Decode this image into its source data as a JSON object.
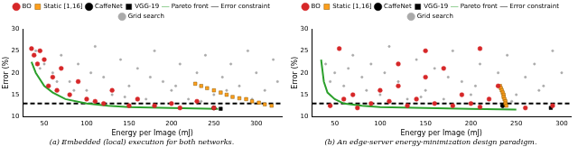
{
  "chart_data": [
    {
      "type": "scatter",
      "title": "(a) Embedded (local) execution for both networks.",
      "x_label": "Energy per Image (mJ)",
      "y_label": "Error (%)",
      "xlim": [
        25,
        330
      ],
      "xticks": [
        50,
        100,
        150,
        200,
        250,
        300
      ],
      "ylim": [
        10,
        30
      ],
      "yticks": [
        10,
        15,
        20,
        25,
        30
      ],
      "grid": false,
      "legend": "top",
      "series": [
        {
          "name": "Pareto front",
          "type": "line",
          "line_style": "solid",
          "color": "#2ca02c",
          "x": [
            35,
            40,
            50,
            60,
            75,
            100,
            125,
            150,
            200,
            255
          ],
          "values": [
            22.5,
            20,
            17,
            15.5,
            14,
            13,
            12.5,
            12.2,
            12,
            11.8
          ]
        },
        {
          "name": "Error constraint",
          "type": "line",
          "line_style": "dashed",
          "color": "#000000",
          "x": [
            25,
            330
          ],
          "values": [
            13,
            13
          ]
        },
        {
          "name": "BO",
          "type": "scatter",
          "marker": "circle",
          "color": "#d62728",
          "x": [
            35,
            38,
            42,
            45,
            50,
            55,
            60,
            65,
            70,
            80,
            90,
            100,
            110,
            120,
            130,
            150,
            160,
            180,
            200,
            210,
            230,
            250
          ],
          "values": [
            25.5,
            24,
            22,
            25,
            23,
            17,
            19,
            16,
            21,
            15,
            18,
            14,
            13.5,
            13,
            16,
            12.5,
            14,
            12.5,
            13,
            12,
            13.5,
            12
          ]
        },
        {
          "name": "Static [1,16]",
          "type": "scatter",
          "marker": "square",
          "color": "#ff9f1c",
          "x": [
            228,
            235,
            242,
            250,
            258,
            265,
            272,
            280,
            288,
            295,
            303,
            310,
            318
          ],
          "values": [
            17.5,
            17,
            16.5,
            16,
            15.5,
            15,
            14.5,
            14.2,
            14,
            13.5,
            13.2,
            12.8,
            12.5
          ]
        },
        {
          "name": "CaffeNet",
          "type": "scatter",
          "marker": "circle",
          "color": "#000000",
          "x": [
            250
          ],
          "values": [
            12
          ]
        },
        {
          "name": "VGG-19",
          "type": "scatter",
          "marker": "square",
          "color": "#000000",
          "x": [
            258
          ],
          "values": [
            11.8
          ]
        },
        {
          "name": "Grid search",
          "type": "scatter",
          "marker": "dot",
          "color": "#aaaaaa",
          "x": [
            40,
            50,
            60,
            70,
            80,
            90,
            100,
            110,
            120,
            130,
            140,
            150,
            160,
            170,
            180,
            190,
            200,
            210,
            220,
            230,
            240,
            250,
            260,
            270,
            280,
            290,
            300,
            310,
            320,
            325,
            45,
            65,
            85,
            105,
            145,
            175,
            205,
            235,
            265,
            295
          ],
          "values": [
            25,
            22,
            20,
            24,
            18,
            22,
            16,
            26,
            19,
            15,
            23,
            17,
            21,
            14,
            25,
            18,
            16,
            22,
            14,
            20,
            24,
            15,
            19,
            22,
            17,
            25,
            20,
            16,
            23,
            18,
            21,
            18,
            16,
            20,
            14.5,
            19,
            17,
            13.5,
            16,
            14
          ]
        }
      ]
    },
    {
      "type": "scatter",
      "title": "(b) An edge-server energy-minimization design paradigm.",
      "x_label": "Energy per Image (mJ)",
      "y_label": "Error (%)",
      "xlim": [
        25,
        310
      ],
      "xticks": [
        50,
        100,
        150,
        200,
        250,
        300
      ],
      "ylim": [
        10,
        30
      ],
      "yticks": [
        10,
        15,
        20,
        25,
        30
      ],
      "grid": false,
      "legend": "top",
      "series": [
        {
          "name": "Pareto front",
          "type": "line",
          "line_style": "solid",
          "color": "#2ca02c",
          "x": [
            35,
            38,
            42,
            50,
            60,
            80,
            100,
            150,
            200,
            250
          ],
          "values": [
            23,
            18,
            15.5,
            14,
            13,
            12.5,
            12.2,
            12,
            11.8,
            11.6
          ]
        },
        {
          "name": "Error constraint",
          "type": "line",
          "line_style": "dashed",
          "color": "#000000",
          "x": [
            25,
            310
          ],
          "values": [
            13,
            13
          ]
        },
        {
          "name": "BO",
          "type": "scatter",
          "marker": "circle",
          "color": "#d62728",
          "x": [
            45,
            60,
            70,
            75,
            90,
            100,
            110,
            120,
            130,
            140,
            150,
            160,
            170,
            180,
            190,
            200,
            210,
            220,
            230,
            260,
            290,
            55,
            150,
            210,
            120
          ],
          "values": [
            12.5,
            14,
            15,
            12,
            13,
            16,
            13.5,
            17,
            12.5,
            14,
            19,
            13,
            21,
            12.5,
            15,
            13,
            12.2,
            14,
            17,
            12,
            12.5,
            25.5,
            25,
            25.5,
            22
          ]
        },
        {
          "name": "Static [1,16]",
          "type": "scatter",
          "marker": "square",
          "color": "#ff9f1c",
          "x": [
            232,
            233,
            234,
            235,
            236,
            236,
            237,
            238,
            238,
            239
          ],
          "values": [
            17,
            16.5,
            16,
            15.5,
            15,
            14.5,
            14,
            13.5,
            13,
            12.5
          ]
        },
        {
          "name": "CaffeNet",
          "type": "scatter",
          "marker": "circle",
          "color": "#000000",
          "x": [
            235
          ],
          "values": [
            12.5
          ]
        },
        {
          "name": "VGG-19",
          "type": "scatter",
          "marker": "square",
          "color": "#000000",
          "x": [
            288
          ],
          "values": [
            12
          ]
        },
        {
          "name": "Grid search",
          "type": "scatter",
          "marker": "dot",
          "color": "#aaaaaa",
          "x": [
            40,
            50,
            60,
            70,
            80,
            90,
            100,
            110,
            120,
            130,
            140,
            150,
            160,
            170,
            180,
            190,
            200,
            210,
            220,
            230,
            240,
            250,
            260,
            270,
            280,
            290,
            300,
            45,
            65,
            85,
            105,
            145,
            175,
            205,
            245,
            275
          ],
          "values": [
            22,
            20,
            17,
            24,
            19,
            22,
            15,
            26,
            18,
            14,
            23,
            16,
            21,
            14,
            25,
            18,
            15,
            22,
            14,
            20,
            24,
            15,
            19,
            22,
            17,
            25,
            20,
            18,
            21,
            16,
            20,
            14.5,
            19,
            17,
            13.5,
            16
          ]
        }
      ]
    }
  ]
}
